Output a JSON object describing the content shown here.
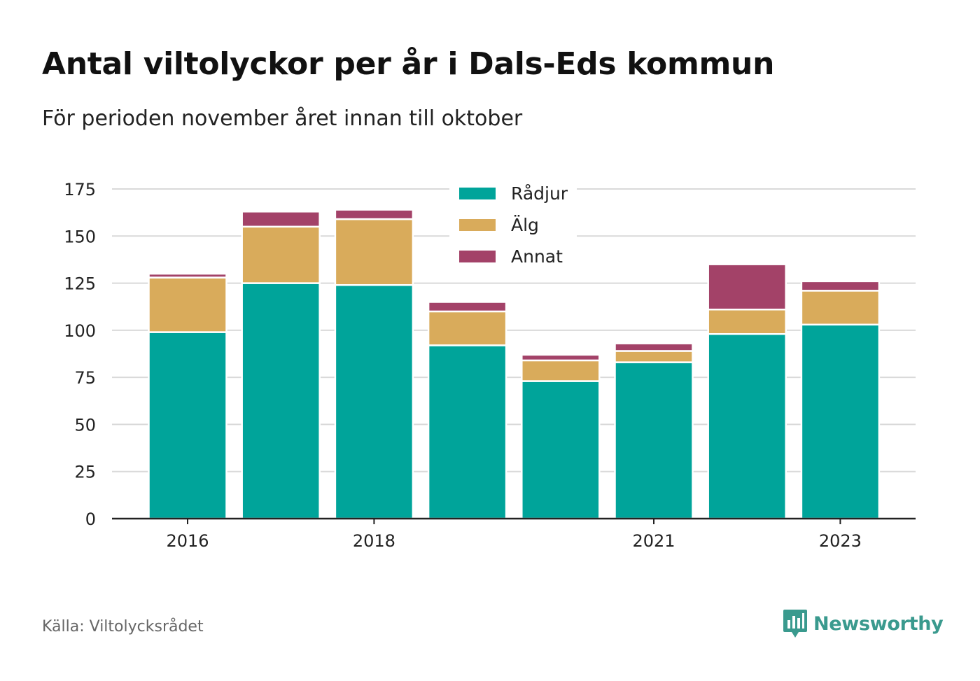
{
  "header": {
    "title": "Antal viltolyckor per år i Dals-Eds kommun",
    "subtitle": "För perioden november året innan till oktober"
  },
  "footer": {
    "source": "Källa: Viltolycksrådet",
    "brand": "Newsworthy"
  },
  "colors": {
    "radjur": "#00a49a",
    "alg": "#d9ab5b",
    "annat": "#a34268",
    "grid": "#d9d9d9",
    "axis": "#222222",
    "brand": "#3a9a8e"
  },
  "chart_data": {
    "type": "bar",
    "stacked": true,
    "title": "Antal viltolyckor per år i Dals-Eds kommun",
    "subtitle": "För perioden november året innan till oktober",
    "x": [
      2016,
      2017,
      2018,
      2019,
      2020,
      2021,
      2022,
      2023
    ],
    "x_tick_labels": [
      "2016",
      "2018",
      "2021",
      "2023"
    ],
    "x_tick_values": [
      2016,
      2018,
      2021,
      2023
    ],
    "y_ticks": [
      0,
      25,
      50,
      75,
      100,
      125,
      150,
      175
    ],
    "ylim": [
      0,
      175
    ],
    "grid": true,
    "legend_position": "top-center",
    "series": [
      {
        "name": "Rådjur",
        "color": "#00a49a",
        "values": [
          99,
          125,
          124,
          92,
          73,
          83,
          98,
          103
        ]
      },
      {
        "name": "Älg",
        "color": "#d9ab5b",
        "values": [
          29,
          30,
          35,
          18,
          11,
          6,
          13,
          18
        ]
      },
      {
        "name": "Annat",
        "color": "#a34268",
        "values": [
          2,
          8,
          5,
          5,
          3,
          4,
          24,
          5
        ]
      }
    ]
  }
}
